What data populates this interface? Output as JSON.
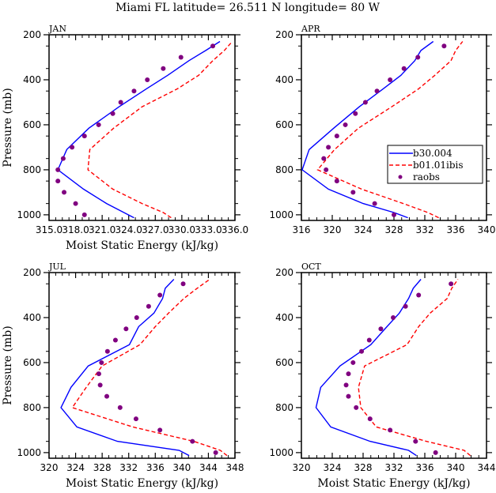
{
  "chart_data": {
    "type": "line",
    "title": "Miami FL   latitude= 26.511 N longitude=  80 W",
    "legend": {
      "placement": "inside-right (APR panel)",
      "entries": [
        {
          "name": "b30.004",
          "style": "solid",
          "color": "#0000ff"
        },
        {
          "name": "b01.01ibis",
          "style": "dashed",
          "color": "#ff0000"
        },
        {
          "name": "raobs",
          "style": "marker",
          "color": "#800080"
        }
      ]
    },
    "panels": [
      {
        "label": "JAN",
        "xlabel": "Moist Static Energy (kJ/kg)",
        "ylabel": "Pressure (mb)",
        "xlim": [
          315.0,
          336.0
        ],
        "xticks": [
          315.0,
          318.0,
          321.0,
          324.0,
          327.0,
          330.0,
          333.0,
          336.0
        ],
        "xtick_labels": [
          "315.0",
          "318.0",
          "321.0",
          "324.0",
          "327.0",
          "330.0",
          "333.0",
          "336.0"
        ],
        "ylim": [
          1025,
          200
        ],
        "yticks": [
          200,
          400,
          600,
          800,
          1000
        ],
        "series": [
          {
            "name": "b30.004",
            "p": [
              1013,
              950,
              886,
              800,
              710,
              615,
              520,
              440,
              380,
              315,
              270,
              230
            ],
            "v": [
              324.6,
              321.5,
              318.9,
              316.0,
              317.0,
              319.5,
              322.9,
              326.0,
              328.4,
              330.8,
              332.7,
              334.3
            ]
          },
          {
            "name": "b01.01ibis",
            "p": [
              1013,
              990,
              950,
              886,
              800,
              710,
              615,
              520,
              440,
              380,
              315,
              270,
              230
            ],
            "v": [
              328.8,
              327.9,
              325.5,
              322.2,
              319.4,
              319.6,
              322.3,
              325.5,
              329.5,
              331.9,
              333.5,
              334.8,
              335.7
            ]
          },
          {
            "name": "raobs",
            "p": [
              250,
              300,
              350,
              400,
              450,
              500,
              550,
              600,
              650,
              700,
              750,
              800,
              850,
              900,
              950,
              1000
            ],
            "v": [
              333.5,
              329.9,
              327.9,
              326.1,
              324.6,
              323.1,
              322.2,
              320.6,
              319.0,
              317.6,
              316.6,
              316.0,
              316.0,
              316.7,
              318.0,
              319.0
            ]
          }
        ]
      },
      {
        "label": "APR",
        "xlabel": "",
        "ylabel": "",
        "xlim": [
          316,
          340
        ],
        "xticks": [
          316,
          320,
          324,
          328,
          332,
          336,
          340
        ],
        "xtick_labels": [
          "316",
          "320",
          "324",
          "328",
          "332",
          "336",
          "340"
        ],
        "ylim": [
          1025,
          200
        ],
        "yticks": [
          200,
          400,
          600,
          800,
          1000
        ],
        "series": [
          {
            "name": "b30.004",
            "p": [
              1013,
              990,
              950,
              886,
              800,
              710,
              615,
              520,
              440,
              380,
              315,
              270,
              230
            ],
            "v": [
              329.8,
              328.0,
              324.0,
              319.5,
              316.1,
              317.0,
              320.2,
              323.5,
              326.6,
              328.9,
              330.7,
              331.5,
              333.1
            ]
          },
          {
            "name": "b01.01ibis",
            "p": [
              1013,
              990,
              950,
              886,
              800,
              710,
              615,
              520,
              440,
              380,
              315,
              270,
              230
            ],
            "v": [
              333.8,
              332.4,
              329.2,
              323.8,
              318.1,
              320.3,
              323.4,
              327.7,
              331.2,
              333.3,
              335.4,
              336.0,
              336.9
            ]
          },
          {
            "name": "raobs",
            "p": [
              250,
              300,
              350,
              400,
              450,
              500,
              550,
              600,
              650,
              700,
              750,
              800,
              850,
              900,
              950,
              1000
            ],
            "v": [
              334.5,
              331.1,
              329.3,
              327.5,
              325.8,
              324.3,
              323.0,
              321.7,
              320.6,
              319.5,
              318.9,
              319.2,
              320.6,
              322.7,
              325.5,
              328.0
            ]
          }
        ]
      },
      {
        "label": "JUL",
        "xlabel": "Moist Static Energy (kJ/kg)",
        "ylabel": "Pressure (mb)",
        "xlim": [
          320,
          348
        ],
        "xticks": [
          320,
          324,
          328,
          332,
          336,
          340,
          344,
          348
        ],
        "xtick_labels": [
          "320",
          "324",
          "328",
          "332",
          "336",
          "340",
          "344",
          "348"
        ],
        "ylim": [
          1025,
          200
        ],
        "yticks": [
          200,
          400,
          600,
          800,
          1000
        ],
        "series": [
          {
            "name": "b30.004",
            "p": [
              1013,
              990,
              950,
              886,
              800,
              710,
              615,
              520,
              440,
              380,
              315,
              270,
              230
            ],
            "v": [
              341.1,
              339.6,
              330.3,
              324.2,
              321.8,
              323.3,
              325.9,
              332.1,
              333.5,
              335.8,
              337.1,
              337.5,
              338.8
            ]
          },
          {
            "name": "b01.01ibis",
            "p": [
              1013,
              990,
              950,
              886,
              800,
              710,
              615,
              520,
              440,
              380,
              315,
              270,
              230
            ],
            "v": [
              346.8,
              345.8,
              341.8,
              332.6,
              323.5,
              325.6,
              328.0,
              333.7,
              336.0,
              338.0,
              340.3,
              342.3,
              344.2
            ]
          },
          {
            "name": "raobs",
            "p": [
              250,
              300,
              350,
              400,
              450,
              500,
              550,
              600,
              650,
              700,
              750,
              800,
              850,
              900,
              950,
              1000
            ],
            "v": [
              340.2,
              336.7,
              335.0,
              333.2,
              331.6,
              330.0,
              328.8,
              327.9,
              327.5,
              327.7,
              328.7,
              330.7,
              333.1,
              336.7,
              341.6,
              345.1
            ]
          }
        ]
      },
      {
        "label": "OCT",
        "xlabel": "Moist Static Energy (kJ/kg)",
        "ylabel": "",
        "xlim": [
          320,
          344
        ],
        "xticks": [
          320,
          324,
          328,
          332,
          336,
          340,
          344
        ],
        "xtick_labels": [
          "320",
          "324",
          "328",
          "332",
          "336",
          "340",
          "344"
        ],
        "ylim": [
          1025,
          200
        ],
        "yticks": [
          200,
          400,
          600,
          800,
          1000
        ],
        "series": [
          {
            "name": "b30.004",
            "p": [
              1013,
              990,
              950,
              886,
              800,
              710,
              615,
              520,
              440,
              380,
              315,
              270,
              230
            ],
            "v": [
              334.9,
              333.9,
              328.9,
              323.8,
              321.9,
              322.5,
              325.0,
              329.0,
              331.1,
              332.7,
              333.9,
              334.5,
              335.5
            ]
          },
          {
            "name": "b01.01ibis",
            "p": [
              1013,
              990,
              950,
              886,
              800,
              710,
              615,
              520,
              440,
              380,
              315,
              270,
              230
            ],
            "v": [
              341.9,
              341.1,
              336.2,
              329.7,
              327.7,
              327.4,
              328.2,
              333.7,
              335.2,
              336.7,
              338.9,
              339.5,
              340.3
            ]
          },
          {
            "name": "raobs",
            "p": [
              250,
              300,
              350,
              400,
              450,
              500,
              550,
              600,
              650,
              700,
              750,
              800,
              850,
              900,
              950,
              1000
            ],
            "v": [
              339.4,
              335.2,
              333.5,
              331.9,
              330.3,
              328.8,
              327.8,
              326.7,
              326.1,
              325.8,
              326.1,
              327.1,
              328.9,
              331.5,
              334.8,
              337.4
            ]
          }
        ]
      }
    ]
  }
}
